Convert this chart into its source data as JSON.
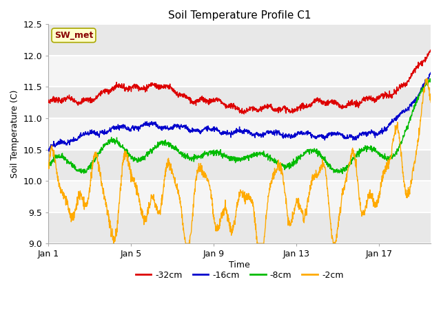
{
  "title": "Soil Temperature Profile C1",
  "xlabel": "Time",
  "ylabel": "Soil Temperature (C)",
  "ylim": [
    9.0,
    12.5
  ],
  "yticks": [
    9.0,
    9.5,
    10.0,
    10.5,
    11.0,
    11.5,
    12.0,
    12.5
  ],
  "legend_label": "SW_met",
  "series_labels": [
    "-32cm",
    "-16cm",
    "-8cm",
    "-2cm"
  ],
  "series_colors": [
    "#dd0000",
    "#0000cc",
    "#00bb00",
    "#ffaa00"
  ],
  "fig_bg": "#ffffff",
  "plot_bg_light": "#ffffff",
  "plot_bg_dark": "#e8e8e8",
  "n_days": 19,
  "ppd": 96
}
